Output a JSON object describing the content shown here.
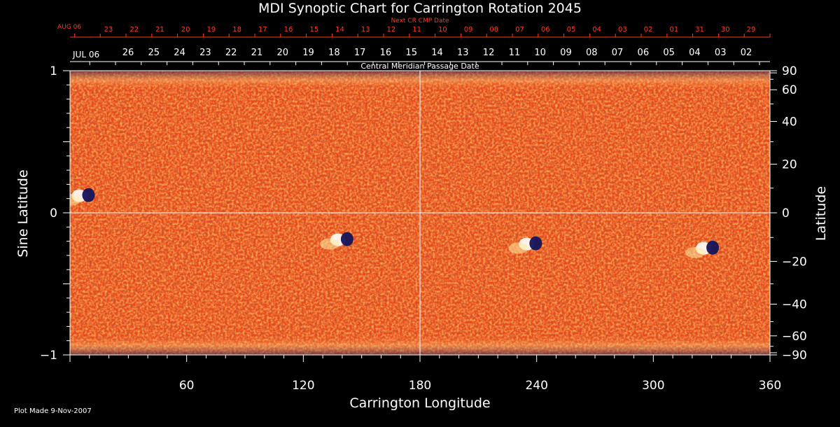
{
  "chart_data": {
    "type": "heatmap",
    "title": "MDI Synoptic Chart for Carrington Rotation 2045",
    "xlabel": "Carrington Longitude",
    "ylabel_left": "Sine Latitude",
    "ylabel_right": "Latitude",
    "xlim": [
      0,
      360
    ],
    "ylim": [
      -1,
      1
    ],
    "x_ticks": [
      60,
      120,
      180,
      240,
      300,
      360
    ],
    "y_ticks_left": [
      {
        "value": 1,
        "label": "1"
      },
      {
        "value": 0,
        "label": "0"
      },
      {
        "value": -1,
        "label": "−1"
      }
    ],
    "y_ticks_right": [
      90,
      60,
      40,
      20,
      0,
      -20,
      -40,
      -60,
      -90
    ],
    "grid": "center-crosshair",
    "top_axis_next": {
      "title": "Next CR CMP Date",
      "start_label": "AUG 06",
      "days": [
        "23",
        "22",
        "21",
        "20",
        "19",
        "18",
        "17",
        "16",
        "15",
        "14",
        "13",
        "12",
        "11",
        "10",
        "09",
        "08",
        "07",
        "06",
        "05",
        "04",
        "03",
        "02",
        "01",
        "31",
        "30",
        "29"
      ]
    },
    "top_axis_current": {
      "title": "Central Meridian Passage Date",
      "start_label": "JUL 06",
      "days": [
        "26",
        "25",
        "24",
        "23",
        "22",
        "21",
        "20",
        "19",
        "18",
        "17",
        "16",
        "15",
        "14",
        "13",
        "12",
        "11",
        "10",
        "09",
        "08",
        "07",
        "06",
        "05",
        "04",
        "03",
        "02"
      ]
    },
    "active_regions": [
      {
        "lon": 7,
        "sinlat": 0.12,
        "polarity": "mixed"
      },
      {
        "lon": 140,
        "sinlat": -0.19,
        "polarity": "mixed"
      },
      {
        "lon": 237,
        "sinlat": -0.22,
        "polarity": "mixed"
      },
      {
        "lon": 328,
        "sinlat": -0.25,
        "polarity": "mixed"
      }
    ],
    "colors": {
      "background_field": "#e8481a",
      "positive": "#ffffff",
      "negative": "#14145a",
      "next_cr_axis": "#ff3a1a",
      "axes": "#ffffff"
    }
  },
  "footer": {
    "plot_made": "Plot Made  9-Nov-2007"
  }
}
